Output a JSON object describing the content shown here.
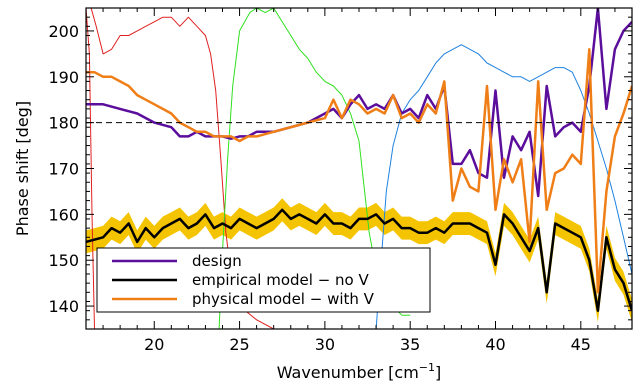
{
  "chart_data": {
    "type": "line",
    "xlabel": "Wavenumber [cm",
    "xlabel_sup": "−1",
    "xlabel_end": "]",
    "ylabel": "Phase shift [deg]",
    "xlim": [
      16,
      48
    ],
    "ylim": [
      135,
      205
    ],
    "xticks": [
      20,
      25,
      30,
      35,
      40,
      45
    ],
    "yticks": [
      140,
      150,
      160,
      170,
      180,
      190,
      200
    ],
    "reference_line": {
      "y": 180,
      "style": "dashed",
      "color": "#000000"
    },
    "legend": {
      "placement": "lower-left",
      "entries": [
        {
          "label": "design",
          "color": "#5b0d9c"
        },
        {
          "label": "empirical model − no V",
          "color": "#000000"
        },
        {
          "label": "physical model − with V",
          "color": "#f07e16"
        }
      ]
    },
    "series": [
      {
        "name": "design",
        "color": "#5b0d9c",
        "width": 2.5,
        "x": [
          16,
          17,
          18,
          19,
          20,
          21,
          21.5,
          22,
          22.5,
          23,
          23.5,
          24,
          24.5,
          25,
          25.5,
          26,
          27,
          28,
          29,
          30,
          30.5,
          31,
          31.5,
          32,
          32.5,
          33,
          33.5,
          34,
          34.5,
          35,
          35.5,
          36,
          36.5,
          37,
          37.5,
          38,
          38.5,
          39,
          39.5,
          40,
          40.5,
          41,
          41.5,
          42,
          42.5,
          43,
          43.5,
          44,
          44.5,
          45,
          45.5,
          46,
          46.5,
          47,
          47.5,
          48
        ],
        "y": [
          184,
          184,
          183,
          182,
          180,
          179,
          177,
          177,
          178,
          177,
          177,
          177,
          176.5,
          177,
          177,
          178,
          178,
          179,
          180,
          182,
          183,
          181,
          184,
          186,
          183,
          184,
          183,
          186,
          182,
          183,
          181,
          186,
          183,
          188,
          171,
          171,
          174,
          169,
          168,
          187,
          168,
          177,
          174,
          178,
          164,
          188,
          177,
          179,
          180,
          178,
          188,
          205,
          183,
          196,
          200,
          202
        ]
      },
      {
        "name": "empirical model − no V",
        "color": "#000000",
        "width": 2.5,
        "band_color": "#f5c400",
        "band_halfwidth": 2.5,
        "x": [
          16,
          17,
          17.5,
          18,
          18.5,
          19,
          19.5,
          20,
          20.5,
          21,
          21.5,
          22,
          22.5,
          23,
          23.5,
          24,
          24.5,
          25,
          25.5,
          26,
          26.5,
          27,
          27.5,
          28,
          28.5,
          29,
          29.5,
          30,
          30.5,
          31,
          31.5,
          32,
          32.5,
          33,
          33.5,
          34,
          34.5,
          35,
          35.5,
          36,
          36.5,
          37,
          37.5,
          38,
          38.5,
          39,
          39.5,
          40,
          40.5,
          41,
          41.5,
          42,
          42.5,
          43,
          43.5,
          44,
          44.5,
          45,
          45.5,
          46,
          46.5,
          47,
          47.5,
          48
        ],
        "y": [
          154,
          155,
          157,
          156,
          158,
          154,
          157,
          155,
          157,
          158,
          159,
          157,
          158,
          160,
          157,
          158,
          157,
          159,
          158,
          157,
          158,
          159,
          161,
          159,
          160,
          159,
          158,
          160,
          158,
          158,
          157,
          159,
          159,
          160,
          158,
          159,
          157,
          157,
          156,
          156,
          157,
          156,
          158,
          158,
          158,
          157,
          156,
          149,
          160,
          158,
          155,
          152,
          157,
          143,
          158,
          157,
          156,
          155,
          150,
          139,
          155,
          148,
          145,
          139
        ]
      },
      {
        "name": "physical model − with V",
        "color": "#f07e16",
        "width": 2.5,
        "x": [
          16,
          16.5,
          17,
          17.5,
          18,
          18.5,
          19,
          19.5,
          20,
          20.5,
          21,
          21.5,
          22,
          22.5,
          23,
          23.5,
          24,
          24.5,
          25,
          25.5,
          26,
          27,
          28,
          29,
          30,
          30.5,
          31,
          31.5,
          32,
          32.5,
          33,
          33.5,
          34,
          34.5,
          35,
          35.5,
          36,
          36.5,
          37,
          37.5,
          38,
          38.5,
          39,
          39.5,
          40,
          40.5,
          41,
          41.5,
          42,
          42.5,
          43,
          43.5,
          44,
          44.5,
          45,
          45.5,
          46,
          46.5,
          47,
          47.5,
          48
        ],
        "y": [
          191,
          191,
          190,
          190,
          189,
          188,
          186,
          185,
          184,
          183,
          182,
          180,
          179,
          178,
          178,
          177,
          177,
          177,
          176,
          177,
          177,
          178,
          179,
          180,
          181,
          185,
          181,
          185,
          184,
          182,
          183,
          182,
          186,
          181,
          182,
          180,
          184,
          182,
          189,
          163,
          170,
          166,
          165,
          188,
          161,
          172,
          167,
          172,
          154,
          189,
          161,
          169,
          170,
          173,
          171,
          196,
          143,
          165,
          177,
          182,
          188
        ]
      },
      {
        "name": "",
        "color": "#e02020",
        "width": 1,
        "x": [
          16.3,
          16.6,
          17,
          17.5,
          18,
          18.5,
          19,
          19.5,
          20,
          20.5,
          21,
          21.5,
          22,
          22.5,
          23,
          23.3,
          23.6,
          23.9,
          24.2,
          24.6,
          25,
          26,
          27,
          27.5
        ],
        "y": [
          205,
          201,
          195,
          196,
          199,
          199,
          200,
          201,
          202,
          203,
          203,
          201,
          203,
          201,
          199,
          195,
          187,
          172,
          156,
          144,
          140,
          137,
          135,
          135
        ]
      },
      {
        "name": "",
        "color": "#30e020",
        "width": 1,
        "x": [
          23.8,
          24,
          24.3,
          24.6,
          25,
          25.3,
          25.6,
          26,
          26.5,
          27,
          27.5,
          28,
          28.5,
          29,
          29.5,
          30,
          30.5,
          31,
          31.5,
          32,
          32.3,
          32.6,
          33,
          33.5,
          34,
          34.5,
          35
        ],
        "y": [
          135,
          152,
          172,
          188,
          200,
          202,
          204,
          205,
          204,
          205,
          202,
          199,
          196,
          194,
          191,
          189,
          188,
          186,
          182,
          176,
          166,
          156,
          148,
          142,
          140,
          138,
          138
        ]
      },
      {
        "name": "",
        "color": "#1e82e0",
        "width": 1,
        "x": [
          33,
          33.3,
          33.6,
          34,
          34.5,
          35,
          35.5,
          36,
          36.5,
          37,
          37.5,
          38,
          38.5,
          39,
          39.5,
          40,
          40.5,
          41,
          41.5,
          42,
          42.5,
          43,
          43.5,
          44,
          44.5,
          45,
          45.5,
          46,
          46.5,
          47,
          47.5,
          48
        ],
        "y": [
          135,
          150,
          165,
          175,
          182,
          185,
          187,
          190,
          193,
          195,
          196,
          197,
          196,
          195,
          193,
          192,
          191,
          190,
          190,
          189,
          190,
          191,
          192,
          192,
          191,
          187,
          182,
          176,
          170,
          163,
          155,
          147
        ]
      },
      {
        "name": "",
        "color": "#e02020",
        "width": 1,
        "x": [
          16,
          16.2,
          16.35,
          16.5
        ],
        "y": [
          205,
          195,
          160,
          135
        ]
      }
    ]
  }
}
